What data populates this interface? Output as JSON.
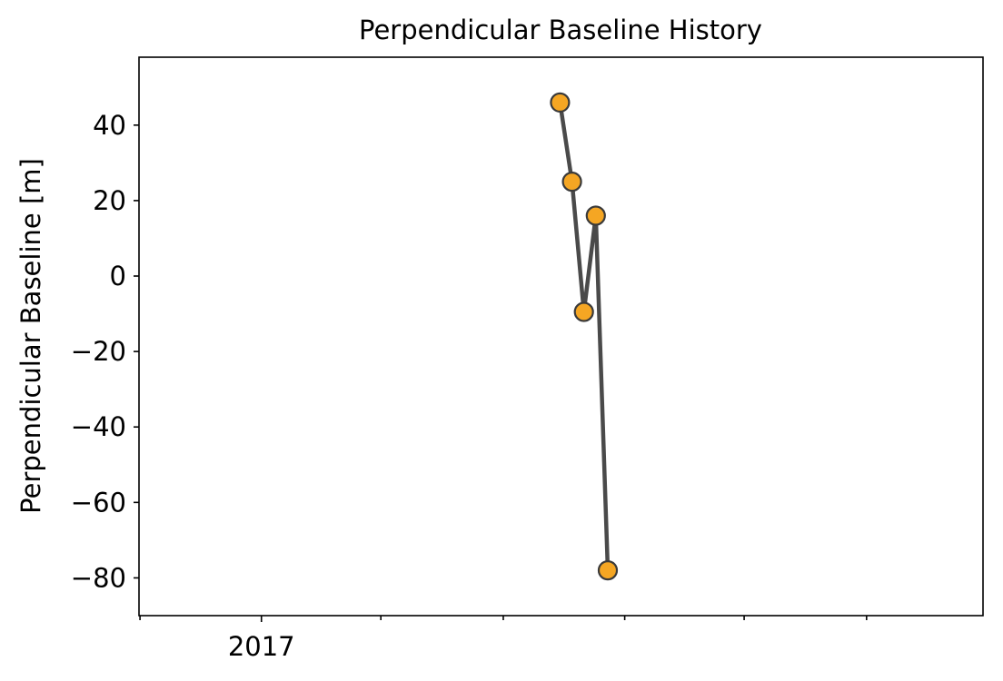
{
  "chart_data": {
    "type": "line",
    "title": "Perpendicular Baseline History",
    "xlabel": "",
    "ylabel": "Perpendicular Baseline [m]",
    "x_tick_labels": [
      "2017"
    ],
    "y_ticks": [
      -80,
      -60,
      -40,
      -20,
      0,
      20,
      40
    ],
    "ylim": [
      -90,
      58
    ],
    "grid": false,
    "legend": "none",
    "colors": {
      "line": "#4a4a4a",
      "marker_fill": "#f5a623",
      "marker_edge": "#3a3a3a"
    },
    "series": [
      {
        "points": [
          {
            "date": "2017-10-28",
            "y": 46
          },
          {
            "date": "2017-11-09",
            "y": 25
          },
          {
            "date": "2017-11-21",
            "y": -9.5
          },
          {
            "date": "2017-12-03",
            "y": 16
          },
          {
            "date": "2017-12-15",
            "y": -78
          }
        ]
      }
    ]
  }
}
